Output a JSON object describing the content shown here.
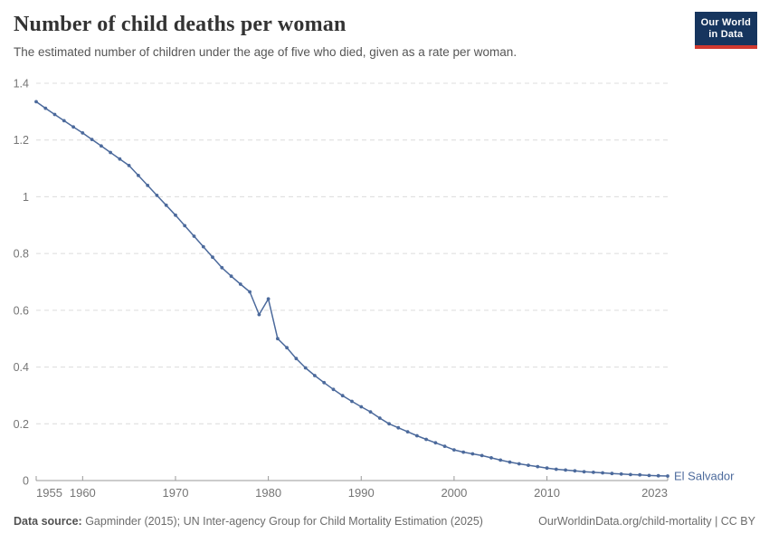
{
  "header": {
    "title": "Number of child deaths per woman",
    "subtitle": "The estimated number of children under the age of five who died, given as a rate per woman.",
    "logo_line1": "Our World",
    "logo_line2": "in Data"
  },
  "chart_data": {
    "type": "line",
    "title": "Number of child deaths per woman",
    "xlabel": "",
    "ylabel": "",
    "xlim": [
      1955,
      2023
    ],
    "ylim": [
      0,
      1.4
    ],
    "x_ticks": [
      1955,
      1960,
      1970,
      1980,
      1990,
      2000,
      2010,
      2023
    ],
    "y_ticks": [
      0,
      0.2,
      0.4,
      0.6,
      0.8,
      1,
      1.2,
      1.4
    ],
    "grid": "horizontal-dashed",
    "legend_position": "end-of-line-label",
    "series": [
      {
        "name": "El Salvador",
        "color": "#4c6a9c",
        "x": [
          1955,
          1956,
          1957,
          1958,
          1959,
          1960,
          1961,
          1962,
          1963,
          1964,
          1965,
          1966,
          1967,
          1968,
          1969,
          1970,
          1971,
          1972,
          1973,
          1974,
          1975,
          1976,
          1977,
          1978,
          1979,
          1980,
          1981,
          1982,
          1983,
          1984,
          1985,
          1986,
          1987,
          1988,
          1989,
          1990,
          1991,
          1992,
          1993,
          1994,
          1995,
          1996,
          1997,
          1998,
          1999,
          2000,
          2001,
          2002,
          2003,
          2004,
          2005,
          2006,
          2007,
          2008,
          2009,
          2010,
          2011,
          2012,
          2013,
          2014,
          2015,
          2016,
          2017,
          2018,
          2019,
          2020,
          2021,
          2022,
          2023
        ],
        "values": [
          1.335,
          1.312,
          1.29,
          1.268,
          1.246,
          1.225,
          1.202,
          1.179,
          1.156,
          1.133,
          1.11,
          1.075,
          1.04,
          1.005,
          0.97,
          0.935,
          0.898,
          0.861,
          0.824,
          0.787,
          0.75,
          0.72,
          0.692,
          0.665,
          0.585,
          0.64,
          0.5,
          0.468,
          0.43,
          0.397,
          0.37,
          0.345,
          0.321,
          0.299,
          0.279,
          0.26,
          0.242,
          0.22,
          0.2,
          0.186,
          0.172,
          0.158,
          0.145,
          0.133,
          0.121,
          0.108,
          0.1,
          0.094,
          0.088,
          0.08,
          0.072,
          0.065,
          0.059,
          0.054,
          0.049,
          0.044,
          0.04,
          0.037,
          0.034,
          0.031,
          0.029,
          0.027,
          0.025,
          0.023,
          0.021,
          0.02,
          0.018,
          0.017,
          0.016
        ]
      }
    ]
  },
  "colors": {
    "line": "#4c6a9c",
    "gridline": "#dcdcdc",
    "axis": "#999999",
    "tick_label": "#757575",
    "logo_bg": "#16355e",
    "logo_strip": "#d1392f"
  },
  "footer": {
    "source_label": "Data source:",
    "source_text": " Gapminder (2015); UN Inter-agency Group for Child Mortality Estimation (2025)",
    "link_text": "OurWorldinData.org/child-mortality | CC BY"
  }
}
